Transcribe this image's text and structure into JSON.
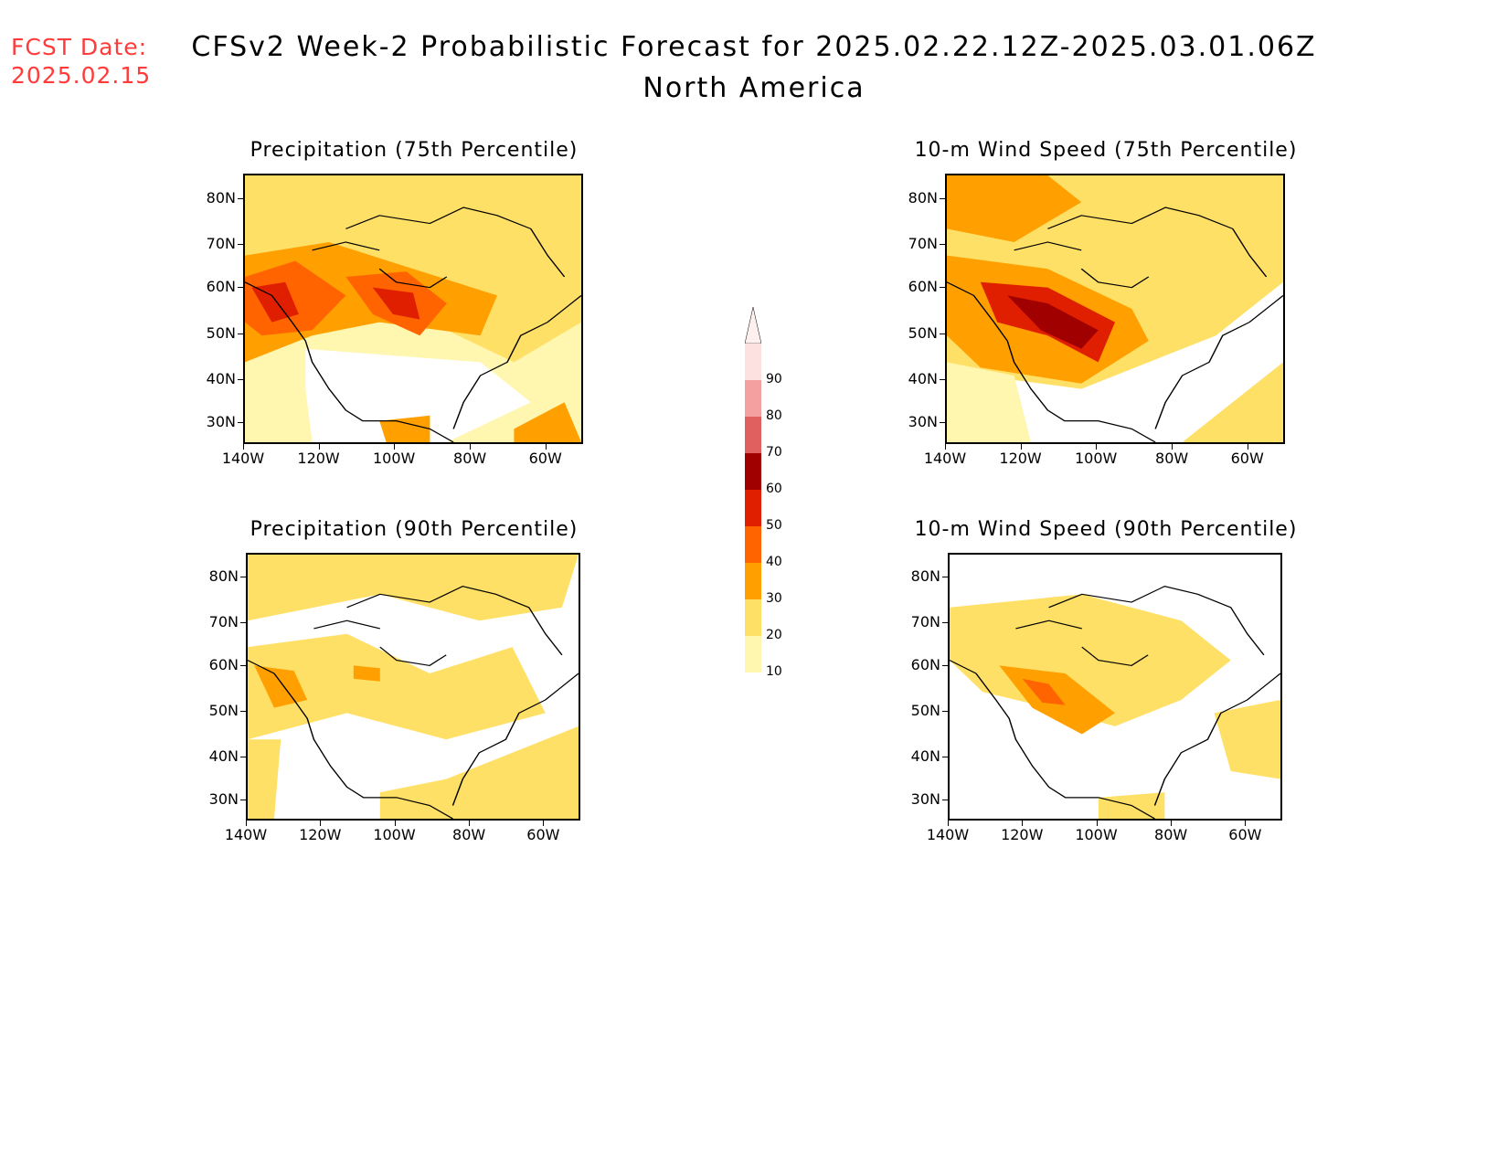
{
  "header": {
    "fcst_line1": "FCST Date:",
    "fcst_line2": "2025.02.15",
    "title": "CFSv2 Week-2 Probabilistic Forecast for 2025.02.22.12Z-2025.03.01.06Z",
    "subtitle": "North America"
  },
  "panels": [
    {
      "title": "Precipitation (75th Percentile)"
    },
    {
      "title": "10-m Wind Speed (75th Percentile)"
    },
    {
      "title": "Precipitation (90th Percentile)"
    },
    {
      "title": "10-m Wind Speed (90th Percentile)"
    }
  ],
  "axes": {
    "lat_ticks": [
      "80N",
      "70N",
      "60N",
      "50N",
      "40N",
      "30N"
    ],
    "lon_ticks": [
      "140W",
      "120W",
      "100W",
      "80W",
      "60W"
    ]
  },
  "colorbar": {
    "labels": [
      "90",
      "80",
      "70",
      "60",
      "50",
      "40",
      "30",
      "20",
      "10"
    ],
    "colors": [
      "#fde0e0",
      "#f4a0a0",
      "#e06060",
      "#a00000",
      "#e01e00",
      "#ff6400",
      "#ffa000",
      "#ffe066",
      "#fff7b0"
    ]
  }
}
